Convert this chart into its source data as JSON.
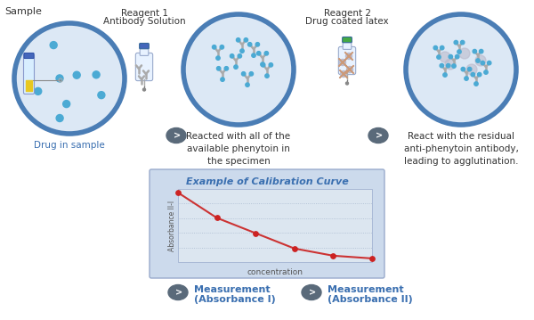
{
  "bg_color": "#ffffff",
  "circle_color": "#4a7db5",
  "circle_fill": "#dce8f5",
  "dot_color": "#4baad4",
  "text_blue": "#3a6fb0",
  "text_dark": "#333333",
  "calibration": {
    "title": "Example of Calibration Curve",
    "title_color": "#3a6fb0",
    "box_color": "#ccdaec",
    "plot_bg": "#dce6f0",
    "xlabel": "concentration",
    "ylabel": "Absorbance II-I",
    "x_data": [
      0,
      1,
      2,
      3,
      4,
      5
    ],
    "y_data": [
      0.9,
      0.62,
      0.45,
      0.28,
      0.2,
      0.17
    ],
    "line_color": "#cc3333",
    "dot_color": "#cc2222",
    "grid_color": "#aabbd0"
  },
  "c1x": 78,
  "c1y": 88,
  "c1r": 62,
  "c2x": 268,
  "c2y": 78,
  "c2r": 62,
  "c3x": 518,
  "c3y": 78,
  "c3r": 62,
  "bottle1x": 162,
  "bottle1y": 75,
  "bottle2x": 390,
  "bottle2y": 68,
  "arrow1x": 198,
  "arrow1y": 155,
  "arrow2x": 395,
  "arrow2y": 155,
  "labels": {
    "sample": "Sample",
    "drug_in_sample": "Drug in sample",
    "reagent1_title": "Reagent 1",
    "reagent1_sub": "Antibody Solution",
    "reagent2_title": "Reagent 2",
    "reagent2_sub": "Drug coated latex",
    "desc1": "Reacted with all of the\navailable phenytoin in\nthe specimen",
    "desc2": "React with the residual\nanti-phenytoin antibody,\nleading to agglutination.",
    "meas1_line1": "Measurement",
    "meas1_line2": "(Absorbance I)",
    "meas2_line1": "Measurement",
    "meas2_line2": "(Absorbance II)"
  }
}
